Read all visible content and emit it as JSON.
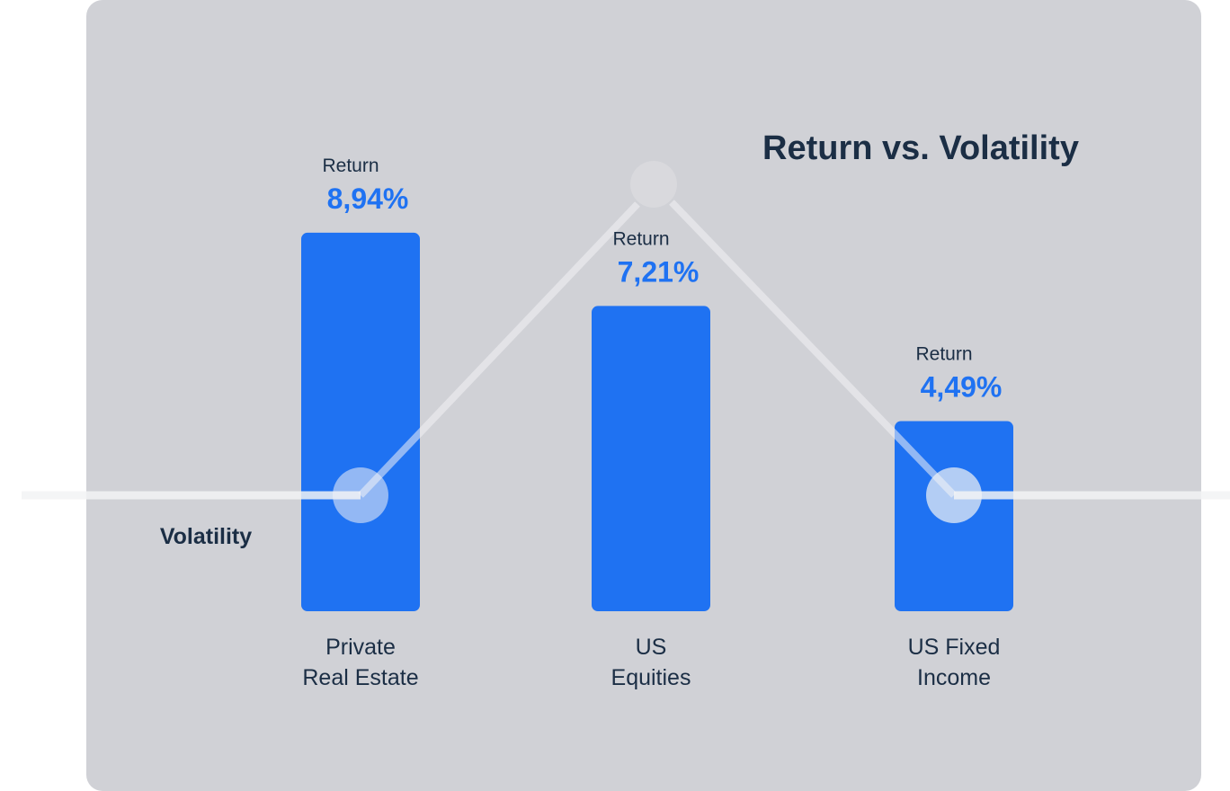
{
  "chart_data": {
    "type": "bar",
    "title": "Return vs. Volatility",
    "categories": [
      [
        "Private",
        "Real Estate"
      ],
      [
        "US",
        "Equities"
      ],
      [
        "US Fixed",
        "Income"
      ]
    ],
    "series": [
      {
        "name": "Return",
        "values": [
          8.94,
          7.21,
          4.49
        ],
        "labels": [
          "8,94%",
          "7,21%",
          "4,49%"
        ]
      }
    ],
    "value_caption": "Return",
    "volatility_label": "Volatility",
    "ylim": [
      0,
      10
    ]
  },
  "colors": {
    "background": "#d0d1d6",
    "bar": "#1f72f2",
    "text": "#1b2e45",
    "line": "#f2f3f5"
  }
}
